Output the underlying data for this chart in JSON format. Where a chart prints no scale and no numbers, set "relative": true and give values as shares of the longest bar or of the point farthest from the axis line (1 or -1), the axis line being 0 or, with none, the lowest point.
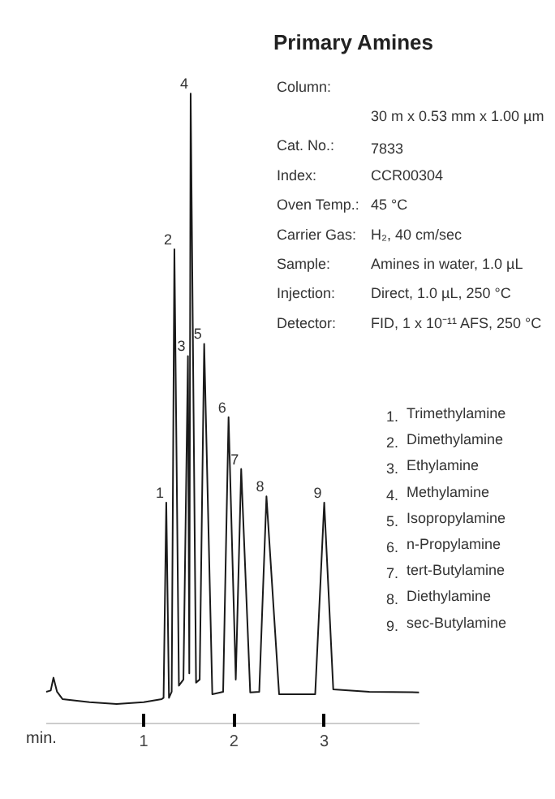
{
  "chart_data": {
    "type": "line",
    "relative": true,
    "title": "Primary Amines",
    "xlabel": "min.",
    "xlim": [
      -0.08,
      4.05
    ],
    "xticks": [
      1,
      2,
      3
    ],
    "grid": false,
    "legend": false,
    "tick_labels": "x",
    "x": [
      -0.08,
      -0.03,
      0.0,
      0.04,
      0.1,
      0.4,
      0.7,
      1.0,
      1.2,
      1.22,
      1.25,
      1.28,
      1.31,
      1.34,
      1.39,
      1.44,
      1.49,
      1.505,
      1.52,
      1.58,
      1.62,
      1.67,
      1.76,
      1.88,
      1.94,
      2.02,
      2.08,
      2.18,
      2.28,
      2.36,
      2.5,
      2.9,
      3.0,
      3.1,
      3.5,
      4.05
    ],
    "series": [
      {
        "color": "#1a1a1a",
        "values": [
          0.02,
          0.022,
          0.043,
          0.02,
          0.008,
          0.003,
          0.0,
          0.003,
          0.008,
          0.01,
          0.33,
          0.01,
          0.02,
          0.745,
          0.03,
          0.04,
          0.57,
          0.05,
          1.0,
          0.035,
          0.04,
          0.59,
          0.016,
          0.02,
          0.47,
          0.04,
          0.385,
          0.019,
          0.02,
          0.34,
          0.016,
          0.016,
          0.33,
          0.024,
          0.02,
          0.019
        ]
      }
    ],
    "annotations": [
      {
        "text": "1",
        "x": 1.25,
        "y": 0.33
      },
      {
        "text": "2",
        "x": 1.34,
        "y": 0.745
      },
      {
        "text": "3",
        "x": 1.49,
        "y": 0.57
      },
      {
        "text": "4",
        "x": 1.52,
        "y": 1.0
      },
      {
        "text": "5",
        "x": 1.67,
        "y": 0.59
      },
      {
        "text": "6",
        "x": 1.94,
        "y": 0.47
      },
      {
        "text": "7",
        "x": 2.08,
        "y": 0.385
      },
      {
        "text": "8",
        "x": 2.36,
        "y": 0.34
      },
      {
        "text": "9",
        "x": 3.0,
        "y": 0.33
      },
      "Column:\t30 m x 0.53 mm x 1.00 µm",
      "Cat. No.:\t7833",
      "Index:\tCCR00304",
      "Oven Temp.:\t45 °C",
      "Carrier Gas:\tH₂, 40 cm/sec",
      "Sample:\tAmines in water, 1.0 µL",
      "Injection:\tDirect, 1.0 µL, 250 °C",
      "Detector:\tFID, 1 x 10⁻¹¹ AFS, 250 °C",
      "1.\tTrimethylamine",
      "2.\tDimethylamine",
      "3.\tEthylamine",
      "4.\tMethylamine",
      "5.\tIsopropylamine",
      "6.\tn-Propylamine",
      "7.\ttert-Butylamine",
      "8.\tDiethylamine",
      "9.\tsec-Butylamine"
    ]
  }
}
